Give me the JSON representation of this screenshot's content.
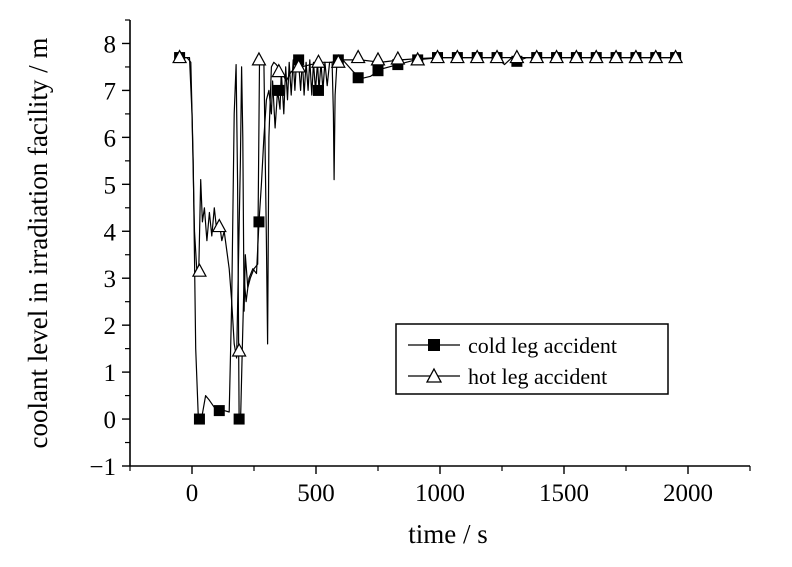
{
  "chart_data": {
    "type": "line",
    "xlabel": "time / s",
    "ylabel": "coolant level in irradiation facility / m",
    "xlim": [
      -250,
      2250
    ],
    "ylim": [
      -1,
      8.5
    ],
    "x_ticks": [
      0,
      500,
      1000,
      1500,
      2000
    ],
    "x_tick_labels": [
      "0",
      "500",
      "1000",
      "1500",
      "2000"
    ],
    "y_ticks": [
      -1,
      0,
      1,
      2,
      3,
      4,
      5,
      6,
      7,
      8
    ],
    "y_tick_labels": [
      "−1",
      "0",
      "1",
      "2",
      "3",
      "4",
      "5",
      "6",
      "7",
      "8"
    ],
    "grid": false,
    "legend_position": "lower-right",
    "series": [
      {
        "name": "cold leg accident",
        "marker": "filled-square",
        "color": "#000000",
        "line": [
          [
            -50,
            7.7
          ],
          [
            -20,
            7.7
          ],
          [
            -5,
            7.6
          ],
          [
            5,
            5.5
          ],
          [
            15,
            1.5
          ],
          [
            25,
            0.1
          ],
          [
            40,
            0.05
          ],
          [
            55,
            0.5
          ],
          [
            70,
            0.4
          ],
          [
            90,
            0.25
          ],
          [
            110,
            0.2
          ],
          [
            130,
            0.18
          ],
          [
            150,
            0.15
          ],
          [
            160,
            2.5
          ],
          [
            170,
            6.5
          ],
          [
            178,
            7.55
          ],
          [
            184,
            5.0
          ],
          [
            190,
            0.05
          ],
          [
            196,
            0.0
          ],
          [
            203,
            1.5
          ],
          [
            210,
            3.0
          ],
          [
            218,
            2.5
          ],
          [
            230,
            3.0
          ],
          [
            245,
            3.2
          ],
          [
            260,
            3.1
          ],
          [
            270,
            4.2
          ],
          [
            280,
            5.0
          ],
          [
            290,
            6.0
          ],
          [
            300,
            6.8
          ],
          [
            310,
            7.0
          ],
          [
            320,
            6.5
          ],
          [
            325,
            7.2
          ],
          [
            335,
            6.2
          ],
          [
            345,
            7.0
          ],
          [
            355,
            6.6
          ],
          [
            360,
            7.4
          ],
          [
            370,
            6.5
          ],
          [
            378,
            7.5
          ],
          [
            385,
            6.8
          ],
          [
            392,
            7.6
          ],
          [
            400,
            6.9
          ],
          [
            408,
            7.65
          ],
          [
            415,
            7.0
          ],
          [
            422,
            7.7
          ],
          [
            430,
            7.6
          ],
          [
            438,
            7.0
          ],
          [
            445,
            7.65
          ],
          [
            452,
            6.9
          ],
          [
            460,
            7.6
          ],
          [
            468,
            7.0
          ],
          [
            475,
            7.65
          ],
          [
            483,
            6.9
          ],
          [
            490,
            7.6
          ],
          [
            498,
            7.0
          ],
          [
            506,
            7.6
          ],
          [
            512,
            7.0
          ],
          [
            520,
            7.6
          ],
          [
            528,
            7.0
          ],
          [
            536,
            7.6
          ],
          [
            545,
            7.1
          ],
          [
            555,
            7.6
          ],
          [
            565,
            7.6
          ],
          [
            570,
            6.5
          ],
          [
            573,
            5.1
          ],
          [
            577,
            6.9
          ],
          [
            585,
            7.65
          ],
          [
            600,
            7.7
          ],
          [
            650,
            7.4
          ],
          [
            680,
            7.25
          ],
          [
            720,
            7.3
          ],
          [
            760,
            7.45
          ],
          [
            830,
            7.55
          ],
          [
            900,
            7.65
          ],
          [
            1000,
            7.7
          ],
          [
            1300,
            7.7
          ],
          [
            1310,
            7.62
          ],
          [
            1350,
            7.7
          ],
          [
            1960,
            7.7
          ]
        ],
        "markers": [
          [
            -50,
            7.7
          ],
          [
            30,
            0.0
          ],
          [
            110,
            0.18
          ],
          [
            190,
            0.0
          ],
          [
            270,
            4.2
          ],
          [
            350,
            7.0
          ],
          [
            430,
            7.65
          ],
          [
            510,
            7.0
          ],
          [
            590,
            7.65
          ],
          [
            670,
            7.27
          ],
          [
            750,
            7.42
          ],
          [
            830,
            7.55
          ],
          [
            910,
            7.65
          ],
          [
            990,
            7.7
          ],
          [
            1070,
            7.7
          ],
          [
            1150,
            7.7
          ],
          [
            1230,
            7.7
          ],
          [
            1310,
            7.62
          ],
          [
            1390,
            7.7
          ],
          [
            1470,
            7.7
          ],
          [
            1550,
            7.7
          ],
          [
            1630,
            7.7
          ],
          [
            1710,
            7.7
          ],
          [
            1790,
            7.7
          ],
          [
            1870,
            7.7
          ],
          [
            1950,
            7.7
          ]
        ]
      },
      {
        "name": "hot leg accident",
        "marker": "open-triangle",
        "color": "#000000",
        "line": [
          [
            -50,
            7.7
          ],
          [
            -10,
            7.7
          ],
          [
            0,
            6.5
          ],
          [
            10,
            4.0
          ],
          [
            20,
            3.1
          ],
          [
            28,
            3.3
          ],
          [
            35,
            5.1
          ],
          [
            42,
            4.2
          ],
          [
            50,
            4.5
          ],
          [
            60,
            3.8
          ],
          [
            70,
            4.4
          ],
          [
            80,
            3.9
          ],
          [
            90,
            4.5
          ],
          [
            100,
            4.0
          ],
          [
            110,
            4.2
          ],
          [
            120,
            3.8
          ],
          [
            130,
            4.0
          ],
          [
            140,
            3.6
          ],
          [
            150,
            3.2
          ],
          [
            160,
            2.5
          ],
          [
            170,
            1.6
          ],
          [
            180,
            1.3
          ],
          [
            188,
            3.5
          ],
          [
            195,
            5.5
          ],
          [
            200,
            7.5
          ],
          [
            205,
            6.0
          ],
          [
            210,
            2.3
          ],
          [
            215,
            3.5
          ],
          [
            225,
            2.8
          ],
          [
            235,
            3.0
          ],
          [
            250,
            3.2
          ],
          [
            265,
            3.3
          ],
          [
            272,
            7.6
          ],
          [
            280,
            7.65
          ],
          [
            290,
            7.6
          ],
          [
            300,
            3.8
          ],
          [
            305,
            1.6
          ],
          [
            310,
            6.0
          ],
          [
            320,
            7.5
          ],
          [
            330,
            7.6
          ],
          [
            340,
            7.55
          ],
          [
            360,
            7.4
          ],
          [
            380,
            7.2
          ],
          [
            400,
            7.4
          ],
          [
            440,
            7.5
          ],
          [
            480,
            7.55
          ],
          [
            520,
            7.6
          ],
          [
            560,
            7.6
          ],
          [
            600,
            7.65
          ],
          [
            680,
            7.65
          ],
          [
            760,
            7.6
          ],
          [
            840,
            7.65
          ],
          [
            920,
            7.68
          ],
          [
            1000,
            7.7
          ],
          [
            1230,
            7.7
          ],
          [
            1260,
            7.55
          ],
          [
            1290,
            7.7
          ],
          [
            1960,
            7.7
          ]
        ],
        "markers": [
          [
            -50,
            7.7
          ],
          [
            30,
            3.15
          ],
          [
            110,
            4.1
          ],
          [
            190,
            1.45
          ],
          [
            270,
            7.65
          ],
          [
            350,
            7.4
          ],
          [
            430,
            7.5
          ],
          [
            510,
            7.6
          ],
          [
            590,
            7.6
          ],
          [
            670,
            7.7
          ],
          [
            750,
            7.65
          ],
          [
            830,
            7.67
          ],
          [
            910,
            7.65
          ],
          [
            990,
            7.7
          ],
          [
            1070,
            7.7
          ],
          [
            1150,
            7.7
          ],
          [
            1230,
            7.7
          ],
          [
            1310,
            7.7
          ],
          [
            1390,
            7.7
          ],
          [
            1470,
            7.7
          ],
          [
            1550,
            7.7
          ],
          [
            1630,
            7.7
          ],
          [
            1710,
            7.7
          ],
          [
            1790,
            7.7
          ],
          [
            1870,
            7.7
          ],
          [
            1950,
            7.7
          ]
        ]
      }
    ]
  }
}
